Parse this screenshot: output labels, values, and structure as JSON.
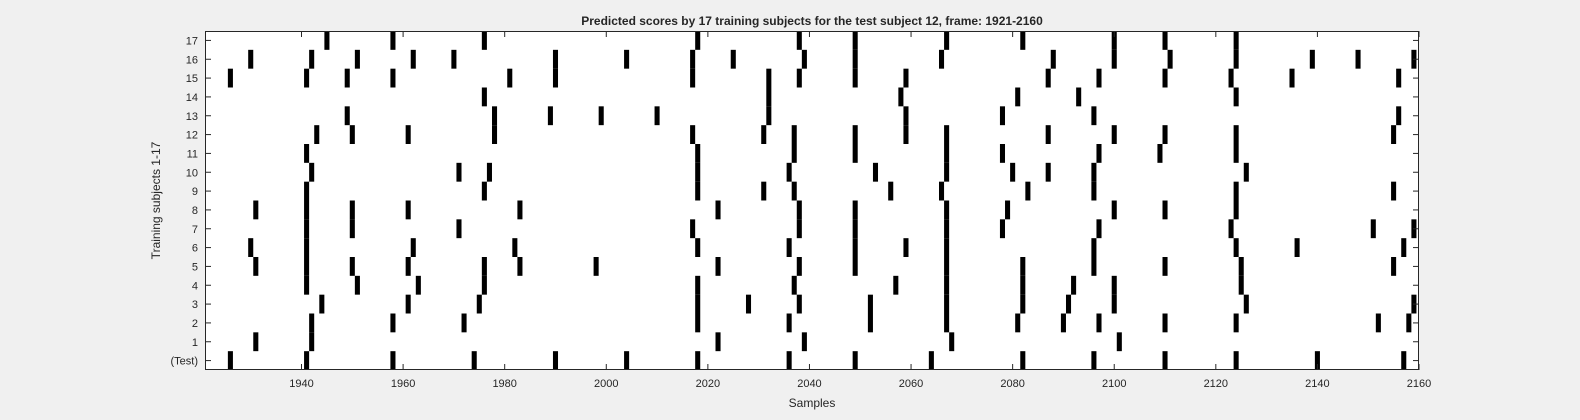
{
  "chart_data": {
    "type": "raster",
    "title": "Predicted scores by 17 training subjects for the test subject 12, frame: 1921-2160",
    "xlabel": "Samples",
    "ylabel": "Training subjects 1-17",
    "xlim": [
      1921,
      2160
    ],
    "x_ticks": [
      1940,
      1960,
      1980,
      2000,
      2020,
      2040,
      2060,
      2080,
      2100,
      2120,
      2140,
      2160
    ],
    "rows": [
      {
        "label": "(Test)",
        "events": [
          1926,
          1941,
          1958,
          1974,
          1990,
          2004,
          2018,
          2036,
          2049,
          2064,
          2082,
          2096,
          2110,
          2124,
          2140,
          2157
        ]
      },
      {
        "label": "1",
        "events": [
          1931,
          1942,
          2022,
          2039,
          2068,
          2101
        ]
      },
      {
        "label": "2",
        "events": [
          1942,
          1958,
          1972,
          2018,
          2036,
          2052,
          2067,
          2081,
          2090,
          2097,
          2110,
          2124,
          2152,
          2158
        ]
      },
      {
        "label": "3",
        "events": [
          1944,
          1961,
          1975,
          2018,
          2028,
          2038,
          2052,
          2067,
          2082,
          2091,
          2100,
          2126,
          2159
        ]
      },
      {
        "label": "4",
        "events": [
          1941,
          1951,
          1963,
          1976,
          2018,
          2037,
          2057,
          2067,
          2082,
          2092,
          2100,
          2125
        ]
      },
      {
        "label": "5",
        "events": [
          1931,
          1941,
          1950,
          1961,
          1976,
          1983,
          1998,
          2022,
          2038,
          2049,
          2067,
          2082,
          2096,
          2110,
          2125,
          2155
        ]
      },
      {
        "label": "6",
        "events": [
          1930,
          1941,
          1962,
          1982,
          2018,
          2036,
          2049,
          2059,
          2067,
          2096,
          2124,
          2136,
          2157
        ]
      },
      {
        "label": "7",
        "events": [
          1941,
          1950,
          1971,
          2017,
          2038,
          2049,
          2067,
          2078,
          2097,
          2123,
          2151,
          2159
        ]
      },
      {
        "label": "8",
        "events": [
          1931,
          1941,
          1950,
          1961,
          1983,
          2022,
          2038,
          2049,
          2067,
          2079,
          2100,
          2110,
          2124
        ]
      },
      {
        "label": "9",
        "events": [
          1941,
          1976,
          2018,
          2031,
          2037,
          2056,
          2066,
          2083,
          2096,
          2124,
          2155
        ]
      },
      {
        "label": "10",
        "events": [
          1942,
          1971,
          1977,
          2018,
          2036,
          2053,
          2067,
          2080,
          2087,
          2096,
          2126
        ]
      },
      {
        "label": "11",
        "events": [
          1941,
          2018,
          2037,
          2049,
          2067,
          2078,
          2097,
          2109,
          2124
        ]
      },
      {
        "label": "12",
        "events": [
          1943,
          1950,
          1961,
          1978,
          2017,
          2031,
          2037,
          2049,
          2059,
          2067,
          2087,
          2100,
          2110,
          2124,
          2155
        ]
      },
      {
        "label": "13",
        "events": [
          1949,
          1978,
          1989,
          1999,
          2010,
          2032,
          2059,
          2078,
          2096,
          2156
        ]
      },
      {
        "label": "14",
        "events": [
          1976,
          2032,
          2058,
          2081,
          2093,
          2124
        ]
      },
      {
        "label": "15",
        "events": [
          1926,
          1941,
          1949,
          1958,
          1981,
          1990,
          2017,
          2032,
          2038,
          2049,
          2059,
          2087,
          2097,
          2110,
          2123,
          2135,
          2156
        ]
      },
      {
        "label": "16",
        "events": [
          1930,
          1942,
          1951,
          1962,
          1970,
          1990,
          2004,
          2017,
          2025,
          2039,
          2049,
          2066,
          2088,
          2100,
          2111,
          2124,
          2139,
          2148,
          2159
        ]
      },
      {
        "label": "17",
        "events": [
          1945,
          1958,
          1976,
          2018,
          2038,
          2049,
          2067,
          2082,
          2100,
          2110,
          2124
        ]
      }
    ],
    "colors": {
      "figure_bg": "#f0f0f0",
      "plot_bg": "#ffffff",
      "mark": "#000000",
      "axis": "#262626"
    },
    "grid": false
  }
}
